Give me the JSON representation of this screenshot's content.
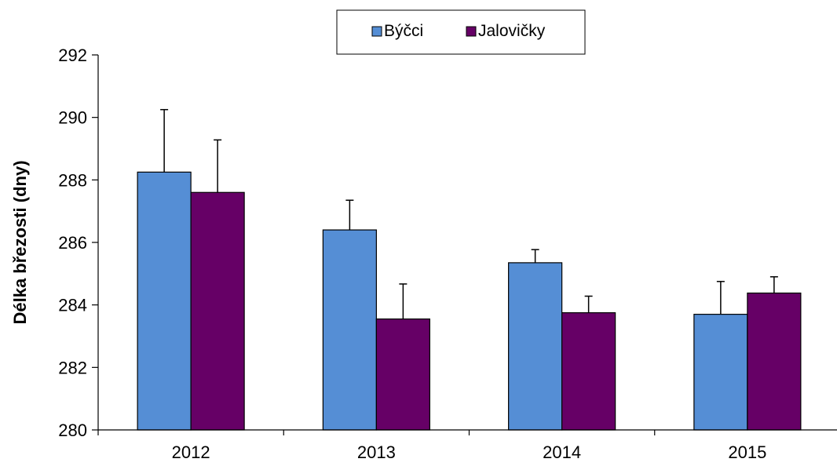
{
  "chart_data": {
    "type": "bar",
    "title": "",
    "xlabel": "",
    "ylabel": "Délka březosti (dny)",
    "categories": [
      "2012",
      "2013",
      "2014",
      "2015"
    ],
    "series": [
      {
        "name": "Býčci",
        "color": "#558ed5",
        "values": [
          288.25,
          286.4,
          285.35,
          283.7
        ],
        "error": [
          2.0,
          0.95,
          0.42,
          1.05
        ]
      },
      {
        "name": "Jalovičky",
        "color": "#660066",
        "values": [
          287.6,
          283.55,
          283.75,
          284.38
        ],
        "error": [
          1.68,
          1.12,
          0.53,
          0.52
        ]
      }
    ],
    "ylim": [
      280,
      292
    ],
    "yticks": [
      "280",
      "282",
      "284",
      "286",
      "288",
      "290",
      "292"
    ],
    "grid": false,
    "legend_position": "top-center",
    "error_bars": "upper only"
  }
}
